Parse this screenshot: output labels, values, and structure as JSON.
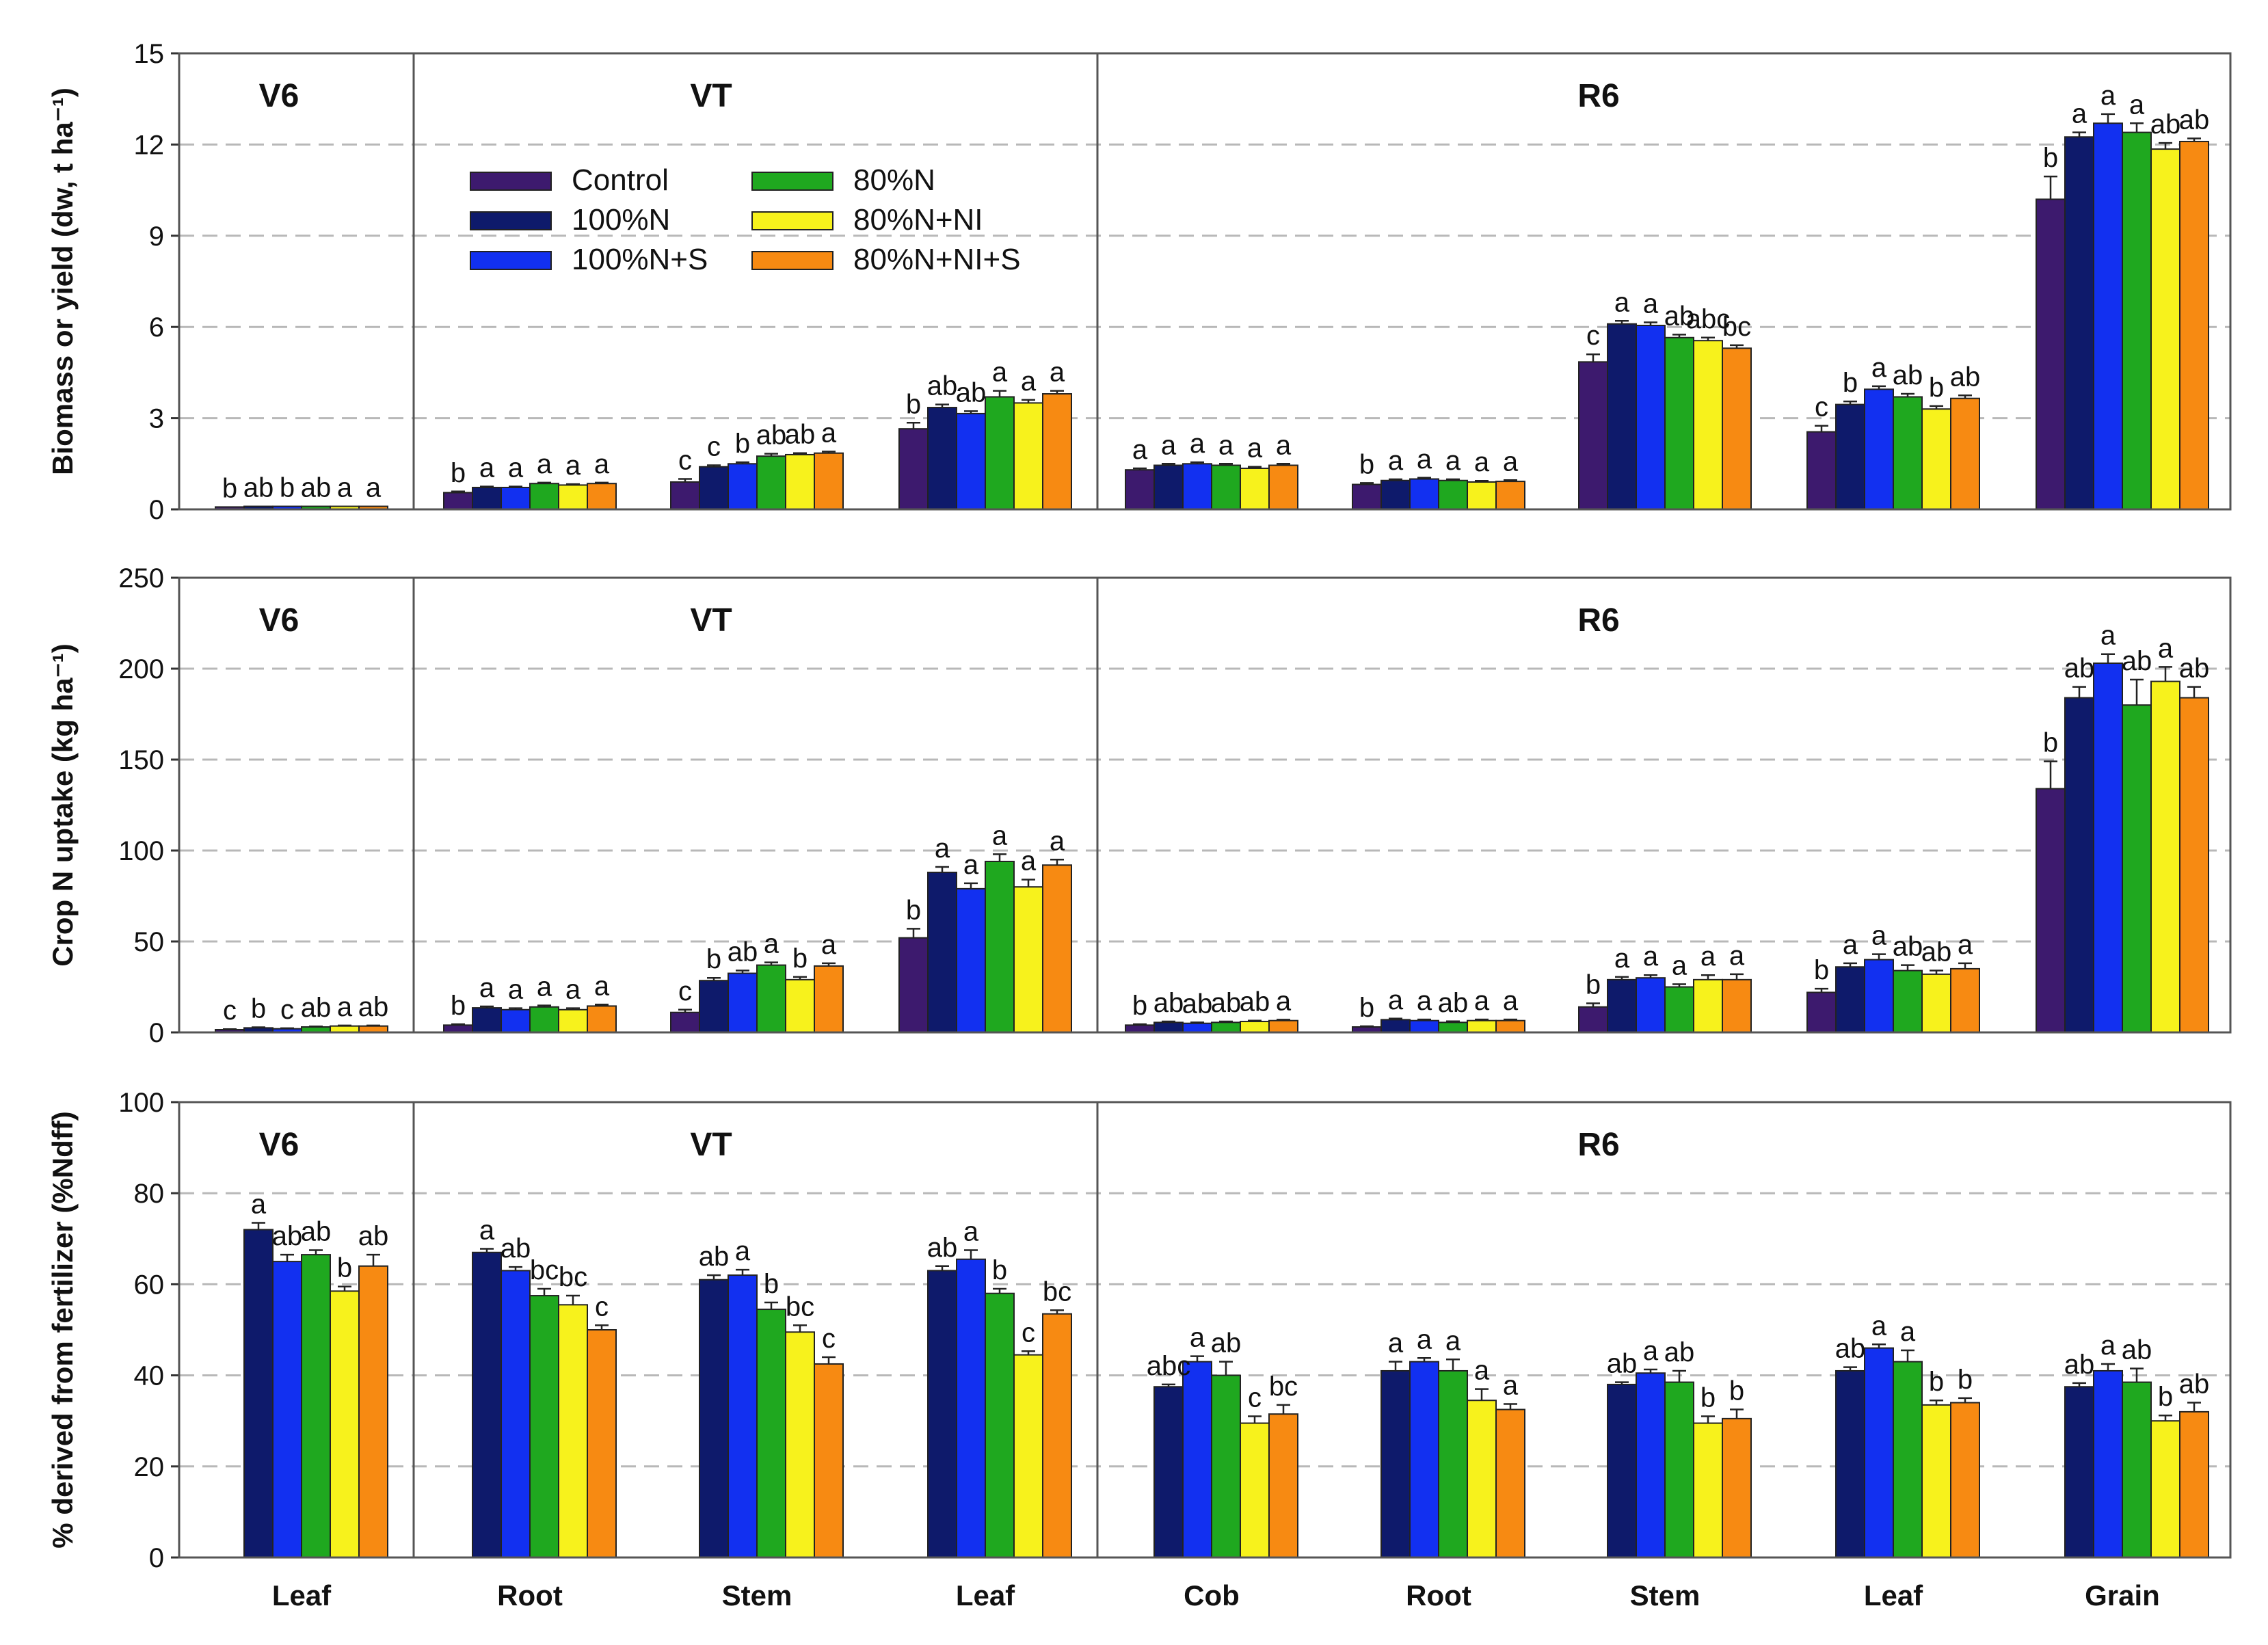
{
  "legend": {
    "entries": [
      "Control",
      "100%N",
      "100%N+S",
      "80%N",
      "80%N+NI",
      "80%N+NI+S"
    ],
    "colors": [
      "#3d1a6e",
      "#0e1a6b",
      "#1230f0",
      "#1fa81f",
      "#f7f21c",
      "#f78a12"
    ]
  },
  "chart_data": [
    {
      "type": "bar",
      "ylabel": "Biomass or yield (dw, t ha⁻¹)",
      "ylim": [
        0,
        15
      ],
      "yticks": [
        "0",
        "3",
        "6",
        "9",
        "12",
        "15"
      ],
      "grid": true,
      "stages": [
        "V6",
        "VT",
        "R6"
      ],
      "categories": [
        "Leaf",
        "Root",
        "Stem",
        "Leaf",
        "Cob",
        "Root",
        "Stem",
        "Leaf",
        "Grain"
      ],
      "series": [
        {
          "name": "Control",
          "values": [
            0.08,
            0.55,
            0.9,
            2.65,
            1.3,
            0.82,
            4.85,
            2.55,
            10.2
          ],
          "errors": [
            0,
            0.04,
            0.1,
            0.2,
            0.05,
            0.05,
            0.25,
            0.2,
            0.75
          ]
        },
        {
          "name": "100%N",
          "values": [
            0.1,
            0.72,
            1.4,
            3.35,
            1.45,
            0.95,
            6.1,
            3.45,
            12.25
          ],
          "errors": [
            0,
            0.03,
            0.05,
            0.1,
            0.05,
            0.04,
            0.1,
            0.1,
            0.15
          ]
        },
        {
          "name": "100%N+S",
          "values": [
            0.1,
            0.72,
            1.5,
            3.15,
            1.5,
            1.0,
            6.05,
            3.95,
            12.7
          ],
          "errors": [
            0,
            0.03,
            0.05,
            0.08,
            0.05,
            0.04,
            0.1,
            0.1,
            0.3
          ]
        },
        {
          "name": "80%N",
          "values": [
            0.1,
            0.85,
            1.75,
            3.7,
            1.45,
            0.95,
            5.65,
            3.7,
            12.4
          ],
          "errors": [
            0,
            0.03,
            0.08,
            0.2,
            0.05,
            0.04,
            0.1,
            0.1,
            0.3
          ]
        },
        {
          "name": "80%N+NI",
          "values": [
            0.1,
            0.8,
            1.8,
            3.5,
            1.35,
            0.9,
            5.55,
            3.3,
            11.85
          ],
          "errors": [
            0,
            0.03,
            0.05,
            0.1,
            0.05,
            0.04,
            0.1,
            0.1,
            0.2
          ]
        },
        {
          "name": "80%N+NI+S",
          "values": [
            0.1,
            0.85,
            1.85,
            3.8,
            1.45,
            0.92,
            5.3,
            3.65,
            12.1
          ],
          "errors": [
            0,
            0.03,
            0.05,
            0.1,
            0.05,
            0.04,
            0.1,
            0.1,
            0.1
          ]
        }
      ],
      "letters": [
        [
          "b",
          "ab",
          "b",
          "ab",
          "a",
          "a"
        ],
        [
          "b",
          "a",
          "a",
          "a",
          "a",
          "a"
        ],
        [
          "c",
          "c",
          "b",
          "ab",
          "ab",
          "a"
        ],
        [
          "b",
          "ab",
          "ab",
          "a",
          "a",
          "a"
        ],
        [
          "a",
          "a",
          "a",
          "a",
          "a",
          "a"
        ],
        [
          "b",
          "a",
          "a",
          "a",
          "a",
          "a"
        ],
        [
          "c",
          "a",
          "a",
          "ab",
          "abc",
          "bc"
        ],
        [
          "c",
          "b",
          "a",
          "ab",
          "b",
          "ab"
        ],
        [
          "b",
          "a",
          "a",
          "a",
          "ab",
          "ab"
        ]
      ]
    },
    {
      "type": "bar",
      "ylabel": "Crop N uptake (kg ha⁻¹)",
      "ylim": [
        0,
        250
      ],
      "yticks": [
        "0",
        "50",
        "100",
        "150",
        "200",
        "250"
      ],
      "grid": true,
      "stages": [
        "V6",
        "VT",
        "R6"
      ],
      "categories": [
        "Leaf",
        "Root",
        "Stem",
        "Leaf",
        "Cob",
        "Root",
        "Stem",
        "Leaf",
        "Grain"
      ],
      "series": [
        {
          "name": "Control",
          "values": [
            1.5,
            4,
            11,
            52,
            4,
            3,
            14,
            22,
            134
          ],
          "errors": [
            0.3,
            0.5,
            1.5,
            5,
            0.5,
            0.4,
            2,
            2,
            15
          ]
        },
        {
          "name": "100%N",
          "values": [
            2.5,
            13.5,
            28.5,
            88,
            5.5,
            7,
            29,
            36,
            184
          ],
          "errors": [
            0.3,
            0.8,
            1.5,
            3,
            0.5,
            0.6,
            1.5,
            2,
            6
          ]
        },
        {
          "name": "100%N+S",
          "values": [
            2,
            12.5,
            32.5,
            79,
            5,
            6.5,
            30,
            40,
            203
          ],
          "errors": [
            0.3,
            0.8,
            1.5,
            3,
            0.5,
            0.6,
            1.5,
            3,
            5
          ]
        },
        {
          "name": "80%N",
          "values": [
            3,
            14,
            37,
            94,
            5.5,
            5.5,
            25,
            34,
            180
          ],
          "errors": [
            0.3,
            0.8,
            1.5,
            4,
            0.5,
            0.6,
            1.5,
            3,
            14
          ]
        },
        {
          "name": "80%N+NI",
          "values": [
            3.5,
            12.5,
            29,
            80,
            6,
            6.5,
            29,
            32,
            193
          ],
          "errors": [
            0.3,
            0.8,
            1.5,
            4,
            0.5,
            0.6,
            2.5,
            2,
            8
          ]
        },
        {
          "name": "80%N+NI+S",
          "values": [
            3.5,
            14.5,
            36.5,
            92,
            6.5,
            6.5,
            29,
            35,
            184
          ],
          "errors": [
            0.3,
            0.8,
            1.5,
            3,
            0.5,
            0.6,
            3,
            3,
            6
          ]
        }
      ],
      "letters": [
        [
          "c",
          "b",
          "c",
          "ab",
          "a",
          "ab"
        ],
        [
          "b",
          "a",
          "a",
          "a",
          "a",
          "a"
        ],
        [
          "c",
          "b",
          "ab",
          "a",
          "b",
          "a"
        ],
        [
          "b",
          "a",
          "a",
          "a",
          "a",
          "a"
        ],
        [
          "b",
          "ab",
          "ab",
          "ab",
          "ab",
          "a"
        ],
        [
          "b",
          "a",
          "a",
          "ab",
          "a",
          "a"
        ],
        [
          "b",
          "a",
          "a",
          "a",
          "a",
          "a"
        ],
        [
          "b",
          "a",
          "a",
          "ab",
          "ab",
          "a"
        ],
        [
          "b",
          "ab",
          "a",
          "ab",
          "a",
          "ab"
        ]
      ]
    },
    {
      "type": "bar",
      "ylabel": "% derived from fertilizer (%Ndff)",
      "ylim": [
        0,
        100
      ],
      "yticks": [
        "0",
        "20",
        "40",
        "60",
        "80",
        "100"
      ],
      "grid": true,
      "stages": [
        "V6",
        "VT",
        "R6"
      ],
      "categories": [
        "Leaf",
        "Root",
        "Stem",
        "Leaf",
        "Cob",
        "Root",
        "Stem",
        "Leaf",
        "Grain"
      ],
      "series": [
        {
          "name": "Control",
          "values": [
            null,
            null,
            null,
            null,
            null,
            null,
            null,
            null,
            null
          ],
          "errors": [
            null,
            null,
            null,
            null,
            null,
            null,
            null,
            null,
            null
          ]
        },
        {
          "name": "100%N",
          "values": [
            72,
            67,
            61,
            63,
            37.5,
            41,
            38,
            41,
            37.5
          ],
          "errors": [
            1.5,
            0.8,
            1,
            1,
            0.5,
            2,
            0.5,
            0.8,
            0.8
          ]
        },
        {
          "name": "100%N+S",
          "values": [
            65,
            63,
            62,
            65.5,
            43,
            43,
            40.5,
            46,
            41
          ],
          "errors": [
            1.5,
            0.8,
            1.2,
            2,
            1.2,
            0.8,
            0.8,
            0.8,
            1.5
          ]
        },
        {
          "name": "80%N",
          "values": [
            66.5,
            57.5,
            54.5,
            58,
            40,
            41,
            38.5,
            43,
            38.5
          ],
          "errors": [
            1,
            1.5,
            1.5,
            1,
            3,
            2.5,
            2.5,
            2.5,
            3
          ]
        },
        {
          "name": "80%N+NI",
          "values": [
            58.5,
            55.5,
            49.5,
            44.5,
            29.5,
            34.5,
            29.5,
            33.5,
            30
          ],
          "errors": [
            1,
            2,
            1.5,
            0.8,
            1.5,
            2.5,
            1.5,
            1,
            1.2
          ]
        },
        {
          "name": "80%N+NI+S",
          "values": [
            64,
            50,
            42.5,
            53.5,
            31.5,
            32.5,
            30.5,
            34,
            32
          ],
          "errors": [
            2.5,
            1,
            1.5,
            0.8,
            2,
            1.2,
            2,
            1,
            2
          ]
        }
      ],
      "letters": [
        [
          null,
          "a",
          "ab",
          "ab",
          "b",
          "ab"
        ],
        [
          null,
          "a",
          "ab",
          "bc",
          "bc",
          "c"
        ],
        [
          null,
          "ab",
          "a",
          "b",
          "bc",
          "c"
        ],
        [
          null,
          "ab",
          "a",
          "b",
          "c",
          "bc"
        ],
        [
          null,
          "abc",
          "a",
          "ab",
          "c",
          "bc"
        ],
        [
          null,
          "a",
          "a",
          "a",
          "a",
          "a"
        ],
        [
          null,
          "ab",
          "a",
          "ab",
          "b",
          "b"
        ],
        [
          null,
          "ab",
          "a",
          "a",
          "b",
          "b"
        ],
        [
          null,
          "ab",
          "a",
          "ab",
          "b",
          "ab"
        ]
      ]
    }
  ]
}
